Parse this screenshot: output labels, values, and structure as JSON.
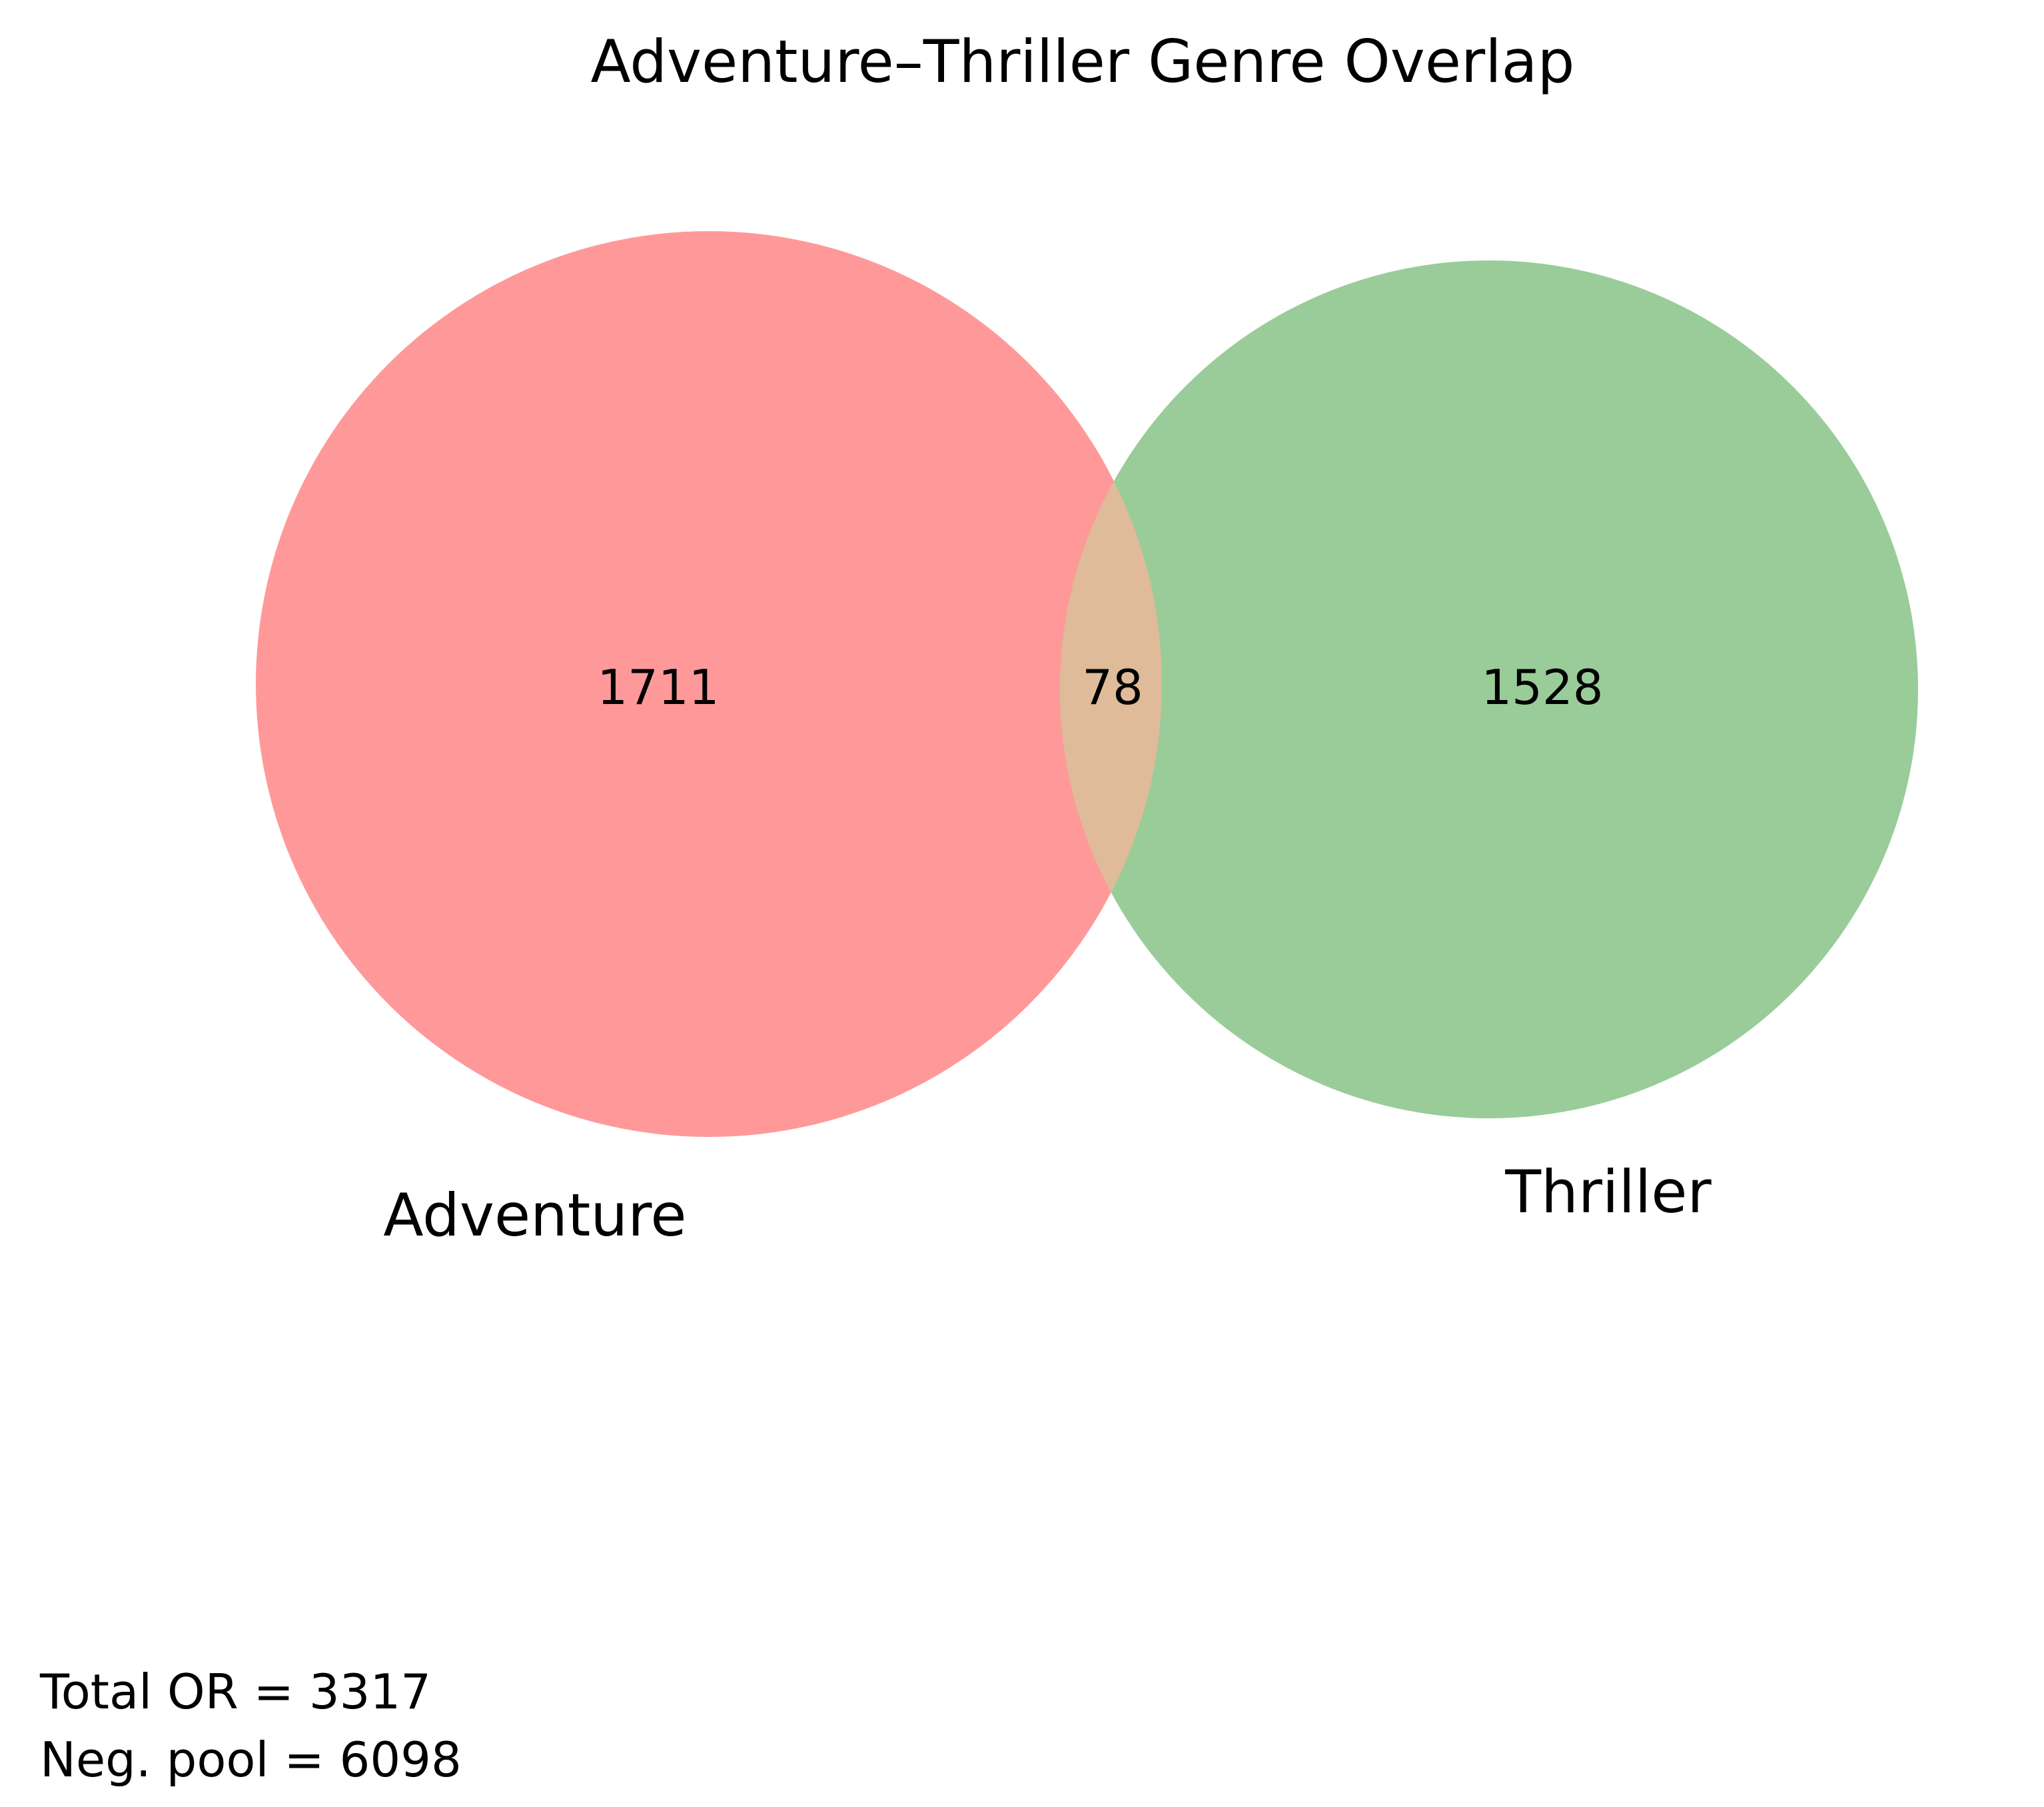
{
  "title": "Adventure–Thriller Genre Overlap",
  "sets": [
    {
      "name": "Adventure",
      "only_count": "1711",
      "color": "#ff9999"
    },
    {
      "name": "Thriller",
      "only_count": "1528",
      "color": "#99cc99"
    }
  ],
  "intersection": {
    "count": "78",
    "color": "#dfbb99"
  },
  "footnote": {
    "line1": "Total OR = 3317",
    "line2": "Neg. pool = 6098"
  }
}
